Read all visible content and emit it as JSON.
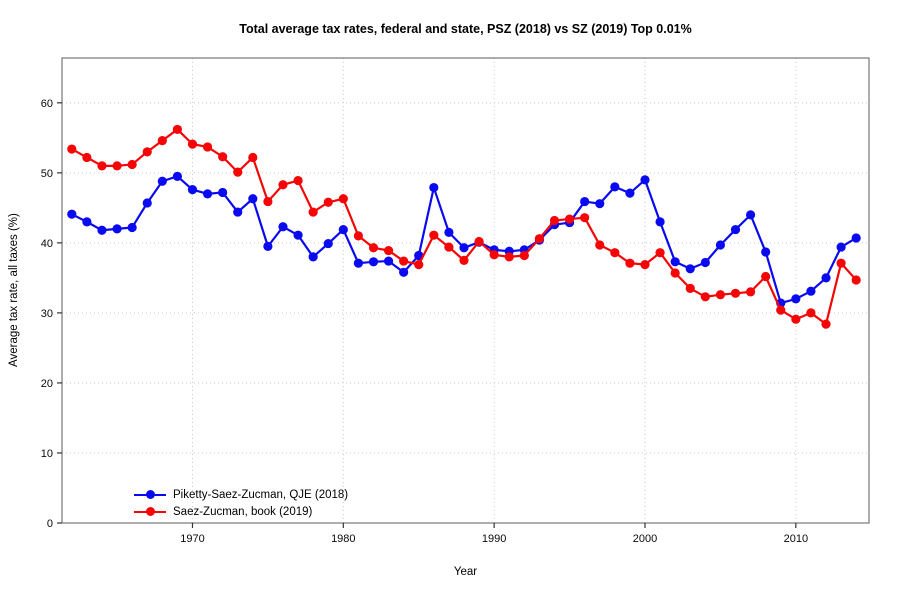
{
  "chart_data": {
    "type": "line",
    "title": "Total average tax rates, federal and state, PSZ (2018) vs SZ (2019) Top 0.01%",
    "xlabel": "Year",
    "ylabel": "Average tax rate, all taxes (%)",
    "xlim": [
      1961.35,
      2014.85
    ],
    "ylim": [
      0,
      66.4
    ],
    "x_ticks": [
      1970,
      1980,
      1990,
      2000,
      2010
    ],
    "y_ticks": [
      0,
      10,
      20,
      30,
      40,
      50,
      60
    ],
    "grid": "dotted, light gray, both axes",
    "legend_position": "inside bottom-left",
    "marker": "filled circle",
    "x": [
      1962,
      1963,
      1964,
      1965,
      1966,
      1967,
      1968,
      1969,
      1970,
      1971,
      1972,
      1973,
      1974,
      1975,
      1976,
      1977,
      1978,
      1979,
      1980,
      1981,
      1982,
      1983,
      1984,
      1985,
      1986,
      1987,
      1988,
      1989,
      1990,
      1991,
      1992,
      1993,
      1994,
      1995,
      1996,
      1997,
      1998,
      1999,
      2000,
      2001,
      2002,
      2003,
      2004,
      2005,
      2006,
      2007,
      2008,
      2009,
      2010,
      2011,
      2012,
      2013,
      2014
    ],
    "series": [
      {
        "name": "Piketty-Saez-Zucman, QJE (2018)",
        "color": "#0a0af0",
        "values": [
          44.1,
          43.0,
          41.8,
          42.0,
          42.2,
          45.7,
          48.8,
          49.5,
          47.6,
          47.0,
          47.2,
          44.4,
          46.3,
          39.5,
          42.3,
          41.1,
          38.0,
          39.9,
          41.9,
          37.1,
          37.3,
          37.4,
          35.8,
          38.2,
          47.9,
          41.5,
          39.3,
          40.1,
          39.0,
          38.8,
          39.0,
          40.4,
          42.6,
          42.9,
          45.9,
          45.6,
          48.0,
          47.1,
          49.0,
          43.0,
          37.3,
          36.3,
          37.2,
          39.7,
          41.9,
          44.0,
          38.7,
          31.4,
          32.0,
          33.1,
          35.0,
          39.4,
          40.7
        ]
      },
      {
        "name": "Saez-Zucman, book (2019)",
        "color": "#f50505",
        "values": [
          53.4,
          52.2,
          51.0,
          51.0,
          51.2,
          53.0,
          54.6,
          56.2,
          54.1,
          53.7,
          52.3,
          50.1,
          52.2,
          45.9,
          48.3,
          48.9,
          44.4,
          45.8,
          46.3,
          41.0,
          39.3,
          38.9,
          37.4,
          36.9,
          41.1,
          39.4,
          37.5,
          40.2,
          38.3,
          38.0,
          38.2,
          40.6,
          43.2,
          43.4,
          43.6,
          39.7,
          38.6,
          37.1,
          36.9,
          38.6,
          35.7,
          33.5,
          32.3,
          32.6,
          32.8,
          33.0,
          35.2,
          30.4,
          29.1,
          30.0,
          28.4,
          37.1,
          34.7
        ]
      }
    ],
    "frame_color": "#777777",
    "grid_color": "#c9c9c9",
    "tick_color": "#333333"
  }
}
